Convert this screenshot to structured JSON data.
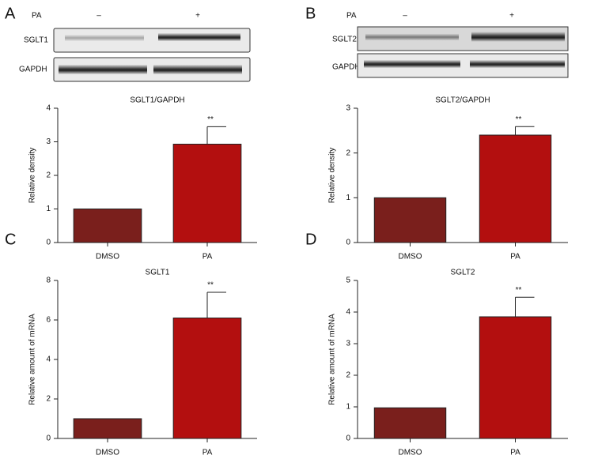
{
  "panels": [
    "A",
    "B",
    "C",
    "D"
  ],
  "blots": [
    {
      "treatment": "PA",
      "lanes": [
        "–",
        "+"
      ],
      "rows": [
        "SGLT1",
        "GAPDH"
      ]
    },
    {
      "treatment": "PA",
      "lanes": [
        "–",
        "+"
      ],
      "rows": [
        "SGLT2",
        "GAPDH"
      ]
    }
  ],
  "chart_data": [
    {
      "type": "bar",
      "title": "SGLT1/GAPDH",
      "ylabel": "Relative density",
      "categories": [
        "DMSO",
        "PA"
      ],
      "values": [
        1.0,
        2.93
      ],
      "errors": [
        null,
        0.52
      ],
      "colors": [
        "#7a1f1c",
        "#b30f0f"
      ],
      "annotation": "**",
      "ylim": [
        0,
        4
      ],
      "yticks": [
        0,
        1,
        2,
        3,
        4
      ]
    },
    {
      "type": "bar",
      "title": "SGLT2/GAPDH",
      "ylabel": "Relative density",
      "categories": [
        "DMSO",
        "PA"
      ],
      "values": [
        1.0,
        2.4
      ],
      "errors": [
        null,
        0.19
      ],
      "colors": [
        "#7a1f1c",
        "#b30f0f"
      ],
      "annotation": "**",
      "ylim": [
        0,
        3
      ],
      "yticks": [
        0,
        1,
        2,
        3
      ]
    },
    {
      "type": "bar",
      "title": "SGLT1",
      "ylabel": "Relative amount of mRNA",
      "categories": [
        "DMSO",
        "PA"
      ],
      "values": [
        1.0,
        6.1
      ],
      "errors": [
        null,
        1.3
      ],
      "colors": [
        "#7a1f1c",
        "#b30f0f"
      ],
      "annotation": "**",
      "ylim": [
        0,
        8
      ],
      "yticks": [
        0,
        2,
        4,
        6,
        8
      ]
    },
    {
      "type": "bar",
      "title": "SGLT2",
      "ylabel": "Relative amount of mRNA",
      "categories": [
        "DMSO",
        "PA"
      ],
      "values": [
        0.97,
        3.85
      ],
      "errors": [
        null,
        0.62
      ],
      "colors": [
        "#7a1f1c",
        "#b30f0f"
      ],
      "annotation": "**",
      "ylim": [
        0,
        5
      ],
      "yticks": [
        0,
        1,
        2,
        3,
        4,
        5
      ]
    }
  ]
}
